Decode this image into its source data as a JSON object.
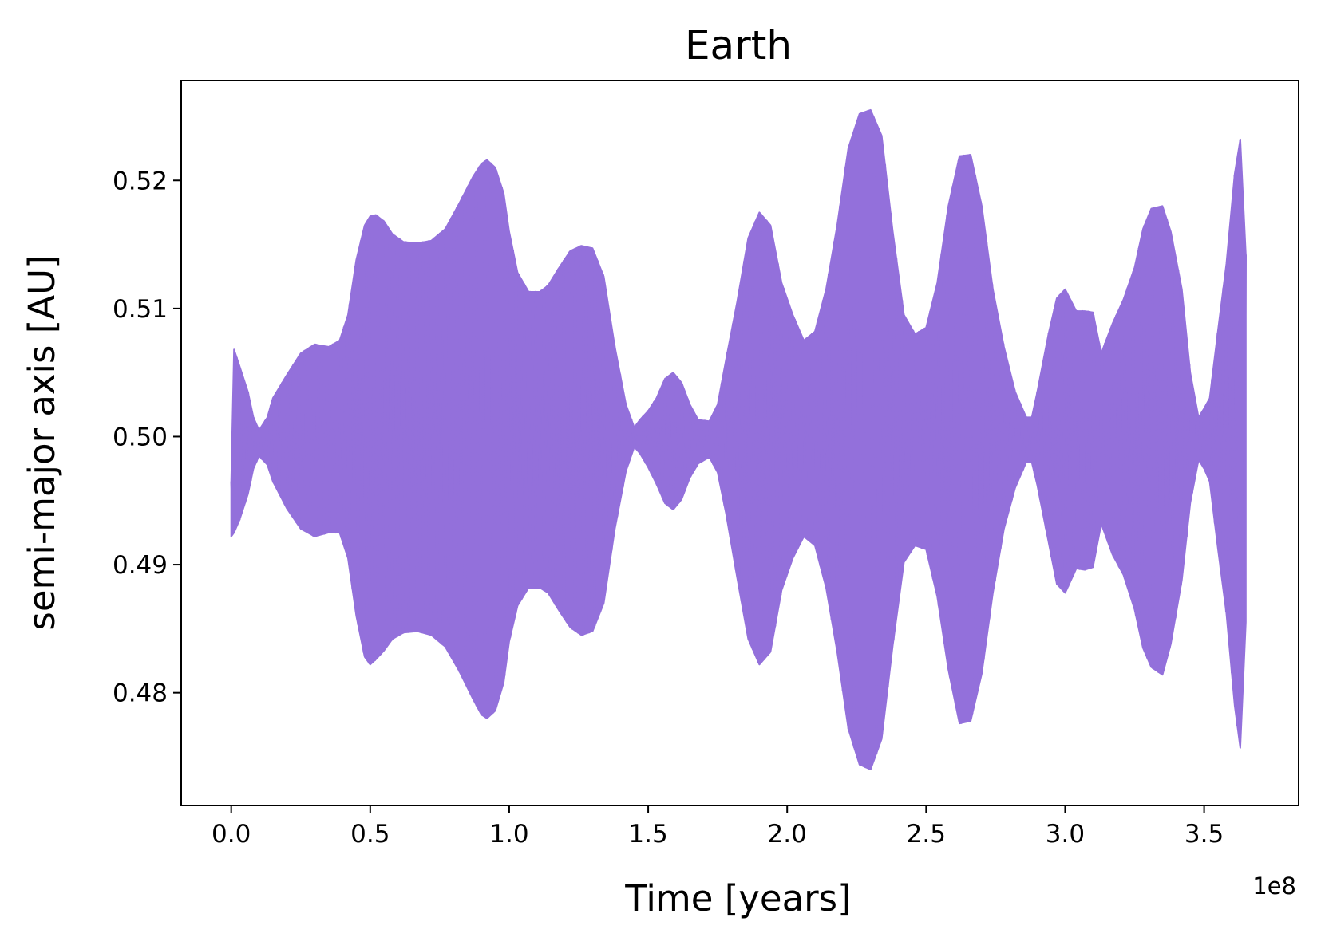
{
  "chart_data": {
    "type": "line",
    "title": "Earth",
    "xlabel": "Time [years]",
    "ylabel": "semi-major axis [AU]",
    "x_offset_label": "1e8",
    "xlim": [
      -0.18,
      3.84
    ],
    "ylim": [
      0.4712,
      0.5278
    ],
    "x_ticks": [
      0.0,
      0.5,
      1.0,
      1.5,
      2.0,
      2.5,
      3.0,
      3.5
    ],
    "x_tick_labels": [
      "0.0",
      "0.5",
      "1.0",
      "1.5",
      "2.0",
      "2.5",
      "3.0",
      "3.5"
    ],
    "y_ticks": [
      0.48,
      0.49,
      0.5,
      0.51,
      0.52
    ],
    "y_tick_labels": [
      "0.48",
      "0.49",
      "0.50",
      "0.51",
      "0.52"
    ],
    "grid": false,
    "legend": "none",
    "colors": {
      "series": "#9370DB",
      "axes": "#000000",
      "background": "#ffffff"
    },
    "series": [
      {
        "x": [
          0.0,
          0.01,
          0.03,
          0.06,
          0.08,
          0.1,
          0.13,
          0.15,
          0.2,
          0.25,
          0.3,
          0.35,
          0.39,
          0.42,
          0.45,
          0.48,
          0.5,
          0.52,
          0.55,
          0.58,
          0.62,
          0.67,
          0.72,
          0.77,
          0.82,
          0.87,
          0.9,
          0.92,
          0.95,
          0.98,
          1.0,
          1.03,
          1.07,
          1.11,
          1.14,
          1.18,
          1.22,
          1.26,
          1.3,
          1.34,
          1.38,
          1.42,
          1.45,
          1.47,
          1.5,
          1.53,
          1.56,
          1.59,
          1.62,
          1.65,
          1.68,
          1.72,
          1.75,
          1.78,
          1.82,
          1.86,
          1.9,
          1.94,
          1.98,
          2.02,
          2.06,
          2.1,
          2.14,
          2.18,
          2.22,
          2.26,
          2.3,
          2.34,
          2.38,
          2.42,
          2.46,
          2.5,
          2.54,
          2.58,
          2.62,
          2.66,
          2.7,
          2.74,
          2.78,
          2.82,
          2.86,
          2.88,
          2.9,
          2.94,
          2.97,
          3.0,
          3.04,
          3.07,
          3.1,
          3.13,
          3.17,
          3.21,
          3.25,
          3.28,
          3.31,
          3.35,
          3.38,
          3.42,
          3.45,
          3.48,
          3.5,
          3.52,
          3.55,
          3.58,
          3.61,
          3.63,
          3.65
        ],
        "upper": [
          0.4965,
          0.5068,
          0.5055,
          0.5035,
          0.5015,
          0.5005,
          0.5015,
          0.503,
          0.5048,
          0.5065,
          0.5072,
          0.507,
          0.5075,
          0.5095,
          0.5138,
          0.5165,
          0.5172,
          0.5173,
          0.5168,
          0.5158,
          0.5152,
          0.5151,
          0.5153,
          0.5162,
          0.5182,
          0.5203,
          0.5213,
          0.5216,
          0.521,
          0.519,
          0.516,
          0.5128,
          0.5113,
          0.5113,
          0.5118,
          0.5132,
          0.5145,
          0.5149,
          0.5147,
          0.5125,
          0.507,
          0.5025,
          0.5007,
          0.5013,
          0.502,
          0.503,
          0.5045,
          0.505,
          0.5042,
          0.5025,
          0.5013,
          0.5012,
          0.5025,
          0.506,
          0.5105,
          0.5155,
          0.5175,
          0.5165,
          0.512,
          0.5095,
          0.5075,
          0.5082,
          0.5115,
          0.5165,
          0.5225,
          0.5252,
          0.5255,
          0.5235,
          0.516,
          0.5095,
          0.508,
          0.5085,
          0.512,
          0.518,
          0.5219,
          0.522,
          0.518,
          0.5115,
          0.507,
          0.5035,
          0.5015,
          0.5015,
          0.5035,
          0.508,
          0.5108,
          0.5115,
          0.5098,
          0.5098,
          0.5097,
          0.5065,
          0.5088,
          0.5107,
          0.5132,
          0.5162,
          0.5178,
          0.518,
          0.516,
          0.5115,
          0.505,
          0.5015,
          0.5022,
          0.503,
          0.5083,
          0.5135,
          0.5205,
          0.5232,
          0.5142
        ],
        "lower": [
          0.4922,
          0.4925,
          0.4935,
          0.4955,
          0.4975,
          0.4985,
          0.4978,
          0.4965,
          0.4944,
          0.4928,
          0.4922,
          0.4925,
          0.4925,
          0.4905,
          0.486,
          0.4828,
          0.4822,
          0.4826,
          0.4833,
          0.4842,
          0.4847,
          0.4848,
          0.4845,
          0.4836,
          0.4817,
          0.4795,
          0.4783,
          0.478,
          0.4786,
          0.4808,
          0.484,
          0.4868,
          0.4882,
          0.4882,
          0.4878,
          0.4864,
          0.4851,
          0.4845,
          0.4848,
          0.487,
          0.4928,
          0.4973,
          0.4992,
          0.4987,
          0.4976,
          0.4963,
          0.4948,
          0.4943,
          0.4951,
          0.4968,
          0.4979,
          0.4984,
          0.4972,
          0.494,
          0.489,
          0.4842,
          0.4822,
          0.4832,
          0.488,
          0.4905,
          0.4922,
          0.4915,
          0.4882,
          0.4832,
          0.4772,
          0.4744,
          0.474,
          0.4764,
          0.4837,
          0.4902,
          0.4915,
          0.4912,
          0.4875,
          0.4818,
          0.4776,
          0.4778,
          0.4815,
          0.4878,
          0.4928,
          0.496,
          0.498,
          0.498,
          0.4962,
          0.4918,
          0.4885,
          0.4878,
          0.4897,
          0.4896,
          0.4898,
          0.4932,
          0.4908,
          0.4892,
          0.4865,
          0.4835,
          0.482,
          0.4814,
          0.4838,
          0.4888,
          0.4948,
          0.4982,
          0.4975,
          0.4965,
          0.4912,
          0.4862,
          0.479,
          0.4757,
          0.4855
        ]
      }
    ]
  }
}
